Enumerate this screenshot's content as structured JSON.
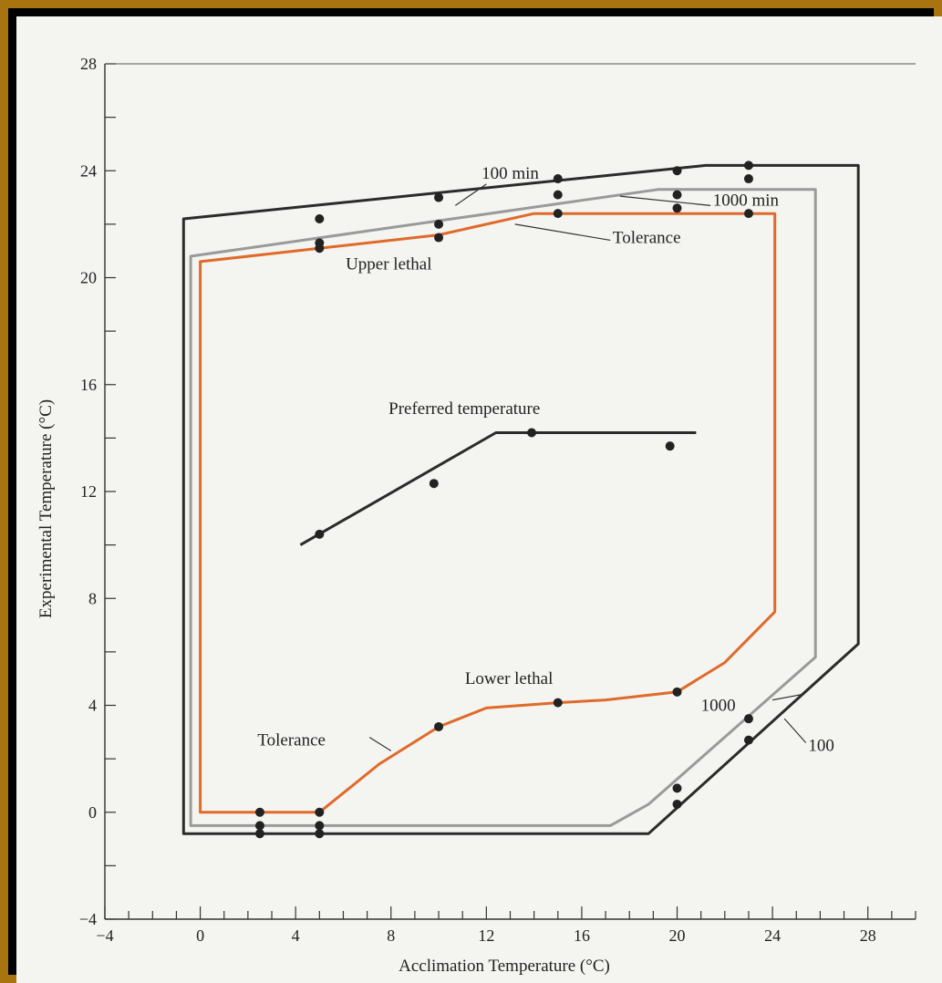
{
  "chart_data": {
    "type": "line",
    "xlabel": "Acclimation Temperature (°C)",
    "ylabel": "Experimental Temperature (°C)",
    "xlim": [
      -4,
      30
    ],
    "ylim": [
      -4,
      28
    ],
    "x_ticks": [
      -4,
      0,
      4,
      8,
      12,
      16,
      20,
      24,
      28
    ],
    "y_ticks": [
      -4,
      0,
      4,
      8,
      12,
      16,
      20,
      24,
      28
    ],
    "grid": false,
    "series": [
      {
        "key": "outer100",
        "color": "#2b2b2b",
        "closed": true,
        "x": [
          -0.7,
          -0.7,
          21.2,
          27.6,
          27.6,
          18.8
        ],
        "y": [
          -0.8,
          22.2,
          24.2,
          24.2,
          6.3,
          -0.8
        ]
      },
      {
        "key": "mid1000",
        "color": "#9a9a9a",
        "closed": true,
        "x": [
          -0.4,
          -0.4,
          19.2,
          25.8,
          25.8,
          18.8,
          17.2,
          -0.4
        ],
        "y": [
          -0.5,
          20.8,
          23.3,
          23.3,
          5.8,
          0.3,
          -0.5,
          -0.5
        ]
      },
      {
        "key": "tolerance",
        "color": "#e06a2a",
        "closed": true,
        "x": [
          0,
          0,
          5,
          10,
          14,
          24.1,
          24.1,
          22,
          20,
          17,
          15,
          12,
          10,
          7.5,
          5,
          0
        ],
        "y": [
          0,
          20.6,
          21.1,
          21.6,
          22.4,
          22.4,
          7.5,
          5.6,
          4.5,
          4.2,
          4.1,
          3.9,
          3.2,
          1.8,
          0,
          0
        ]
      },
      {
        "key": "preferred",
        "name": "Preferred temperature",
        "color": "#2b2b2b",
        "closed": false,
        "x": [
          4.2,
          12.4,
          20.8
        ],
        "y": [
          10.0,
          14.2,
          14.2
        ]
      }
    ],
    "points": [
      {
        "x": 5,
        "y": 22.2
      },
      {
        "x": 10,
        "y": 23.0
      },
      {
        "x": 15,
        "y": 23.7
      },
      {
        "x": 20,
        "y": 24.0
      },
      {
        "x": 23,
        "y": 24.2
      },
      {
        "x": 5,
        "y": 21.3
      },
      {
        "x": 5,
        "y": 21.1
      },
      {
        "x": 10,
        "y": 22.0
      },
      {
        "x": 10,
        "y": 21.5
      },
      {
        "x": 15,
        "y": 23.1
      },
      {
        "x": 15,
        "y": 22.4
      },
      {
        "x": 20,
        "y": 23.1
      },
      {
        "x": 20,
        "y": 22.6
      },
      {
        "x": 23,
        "y": 23.7
      },
      {
        "x": 23,
        "y": 22.4
      },
      {
        "x": 5,
        "y": 10.4
      },
      {
        "x": 9.8,
        "y": 12.3
      },
      {
        "x": 13.9,
        "y": 14.2
      },
      {
        "x": 19.7,
        "y": 13.7
      },
      {
        "x": 2.5,
        "y": 0
      },
      {
        "x": 2.5,
        "y": -0.5
      },
      {
        "x": 2.5,
        "y": -0.8
      },
      {
        "x": 5,
        "y": 0
      },
      {
        "x": 5,
        "y": -0.5
      },
      {
        "x": 5,
        "y": -0.8
      },
      {
        "x": 10,
        "y": 3.2
      },
      {
        "x": 15,
        "y": 4.1
      },
      {
        "x": 20,
        "y": 4.5
      },
      {
        "x": 20,
        "y": 0.9
      },
      {
        "x": 20,
        "y": 0.3
      },
      {
        "x": 23,
        "y": 3.5
      },
      {
        "x": 23,
        "y": 2.7
      }
    ],
    "annotations": [
      {
        "id": "lbl100min",
        "text": "100 min",
        "x": 11.8,
        "y": 23.7
      },
      {
        "id": "lbl1000min",
        "text": "1000 min",
        "x": 21.5,
        "y": 22.7
      },
      {
        "id": "lblTolUpper",
        "text": "Tolerance",
        "x": 17.3,
        "y": 21.3
      },
      {
        "id": "lblUpperLethal",
        "text": "Upper lethal",
        "x": 6.1,
        "y": 20.3
      },
      {
        "id": "lblPreferred",
        "text": "Preferred temperature",
        "x": 7.9,
        "y": 14.9
      },
      {
        "id": "lblLowerLethal",
        "text": "Lower lethal",
        "x": 11.1,
        "y": 4.8
      },
      {
        "id": "lblTolLower",
        "text": "Tolerance",
        "x": 2.4,
        "y": 2.5
      },
      {
        "id": "lbl1000",
        "text": "1000",
        "x": 21.0,
        "y": 3.8
      },
      {
        "id": "lbl100",
        "text": "100",
        "x": 25.5,
        "y": 2.3
      }
    ]
  }
}
